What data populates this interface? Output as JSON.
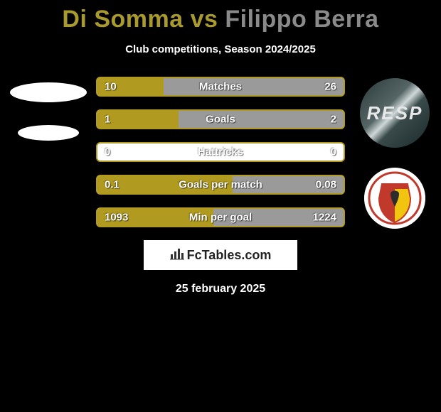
{
  "header": {
    "title_left": "Di Somma",
    "title_vs": " vs ",
    "title_right": "Filippo Berra",
    "subtitle": "Club competitions, Season 2024/2025",
    "title_color_left": "#a89a2f",
    "title_color_right": "#8a8a8a"
  },
  "bars": {
    "border_color": "#b09a1f",
    "left_fill_color": "#b09a1f",
    "right_fill_color": "#9a9a9a",
    "background_color": "#ffffff",
    "rows": [
      {
        "label": "Matches",
        "left": "10",
        "right": "26",
        "left_pct": 27,
        "right_pct": 73
      },
      {
        "label": "Goals",
        "left": "1",
        "right": "2",
        "left_pct": 33,
        "right_pct": 67
      },
      {
        "label": "Hattricks",
        "left": "0",
        "right": "0",
        "left_pct": 0,
        "right_pct": 0
      },
      {
        "label": "Goals per match",
        "left": "0.1",
        "right": "0.08",
        "left_pct": 55,
        "right_pct": 45
      },
      {
        "label": "Min per goal",
        "left": "1093",
        "right": "1224",
        "left_pct": 47,
        "right_pct": 53
      }
    ]
  },
  "branding": {
    "text": "FcTables.com"
  },
  "date": "25 february 2025",
  "player_right_badge_text": "RESP",
  "club_right": {
    "outer_color": "#c0392b",
    "stripe_colors": [
      "#f1c40f",
      "#c0392b"
    ]
  }
}
